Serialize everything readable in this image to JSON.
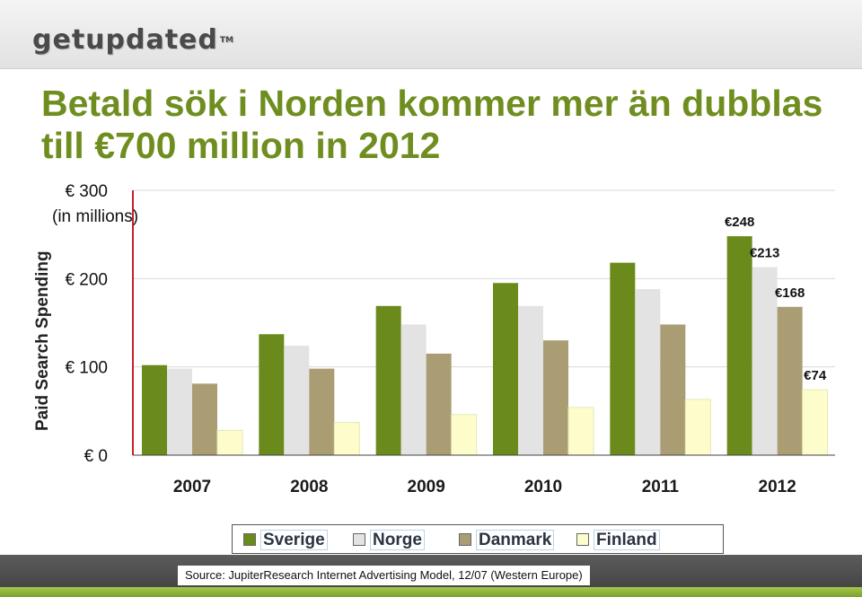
{
  "header": {
    "logo_text": "getupdated",
    "logo_tm": "TM"
  },
  "chart_data": {
    "type": "bar",
    "title": "Betald sök i Norden kommer mer än dubblas till €700 million in 2012",
    "title_lines": [
      "Betald sök i Norden kommer mer än dubblas",
      "till €700 million in 2012"
    ],
    "ylabel": "Paid Search Spending",
    "unit_label": "(in millions)",
    "xlabel": "",
    "ylim": [
      0,
      300
    ],
    "yticks": [
      {
        "value": 0,
        "label": "€ 0"
      },
      {
        "value": 100,
        "label": "€ 100"
      },
      {
        "value": 200,
        "label": "€ 200"
      },
      {
        "value": 300,
        "label": "€ 300"
      }
    ],
    "categories": [
      "2007",
      "2008",
      "2009",
      "2010",
      "2011",
      "2012"
    ],
    "series": [
      {
        "name": "Sverige",
        "color": "#6b8a1c",
        "values": [
          102,
          137,
          169,
          195,
          218,
          248
        ]
      },
      {
        "name": "Norge",
        "color": "#e3e3e3",
        "values": [
          98,
          124,
          148,
          169,
          188,
          213
        ]
      },
      {
        "name": "Danmark",
        "color": "#ab9d73",
        "values": [
          81,
          98,
          115,
          130,
          148,
          168
        ]
      },
      {
        "name": "Finland",
        "color": "#fdfdcc",
        "values": [
          28,
          37,
          46,
          54,
          63,
          74
        ]
      }
    ],
    "data_labels": [
      {
        "series": 0,
        "category": 5,
        "text": "€248"
      },
      {
        "series": 1,
        "category": 5,
        "text": "€213"
      },
      {
        "series": 2,
        "category": 5,
        "text": "€168"
      },
      {
        "series": 3,
        "category": 5,
        "text": "€74"
      }
    ],
    "legend_position": "bottom"
  },
  "footer": {
    "source": "Source: JupiterResearch Internet Advertising Model, 12/07 (Western Europe)"
  }
}
